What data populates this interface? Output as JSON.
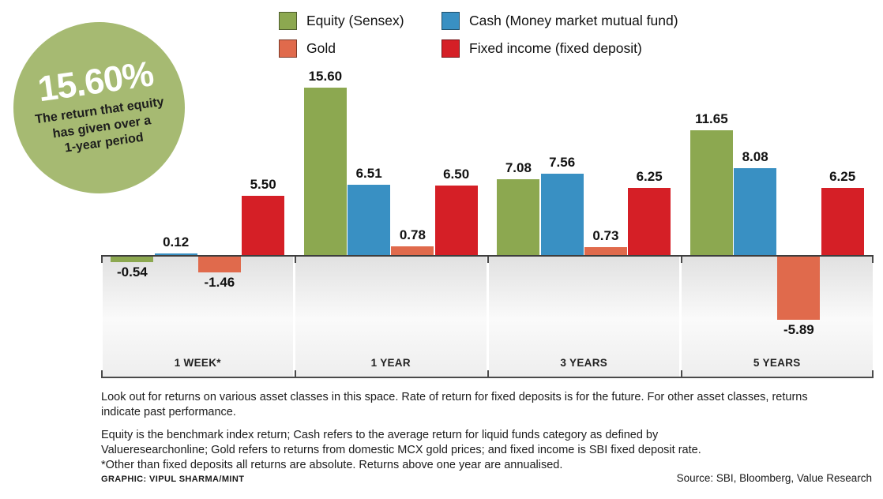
{
  "badge": {
    "value": "15.60%",
    "desc_lines": [
      "The return that equity",
      "has given over a",
      "1-year period"
    ]
  },
  "legend": [
    {
      "label": "Equity (Sensex)",
      "color": "#8CA850"
    },
    {
      "label": "Cash (Money market mutual fund)",
      "color": "#3990C3"
    },
    {
      "label": "Gold",
      "color": "#E06A4C"
    },
    {
      "label": "Fixed income (fixed deposit)",
      "color": "#D51F26"
    }
  ],
  "chart_data": {
    "type": "bar",
    "categories": [
      "1 WEEK*",
      "1 YEAR",
      "3 YEARS",
      "5 YEARS"
    ],
    "series": [
      {
        "name": "Equity (Sensex)",
        "color": "#8CA850",
        "values": [
          -0.54,
          15.6,
          7.08,
          11.65
        ]
      },
      {
        "name": "Cash (Money market mutual fund)",
        "color": "#3990C3",
        "values": [
          0.12,
          6.51,
          7.56,
          8.08
        ]
      },
      {
        "name": "Gold",
        "color": "#E06A4C",
        "values": [
          -1.46,
          0.78,
          0.73,
          -5.89
        ]
      },
      {
        "name": "Fixed income (fixed deposit)",
        "color": "#D51F26",
        "values": [
          5.5,
          6.5,
          6.25,
          6.25
        ]
      }
    ],
    "value_labels": true,
    "ylim": [
      -7,
      17
    ],
    "grid": false,
    "legend_position": "top",
    "title": "",
    "xlabel": "",
    "ylabel": ""
  },
  "notes": {
    "para1_line1": "Look out for returns on various asset classes in this space. Rate of return for fixed deposits is for the future. For other asset classes, returns",
    "para1_line2": "indicate past performance.",
    "para2_line1": "Equity is the benchmark index return; Cash refers to the average return for liquid funds category as defined by",
    "para2_line2": "Valueresearchonline; Gold refers to returns from domestic MCX gold prices; and fixed income is SBI fixed deposit rate.",
    "para2_line3": "*Other than fixed deposits all returns are absolute. Returns above one year are annualised."
  },
  "credit": "GRAPHIC: VIPUL SHARMA/MINT",
  "source": "Source: SBI, Bloomberg, Value Research"
}
